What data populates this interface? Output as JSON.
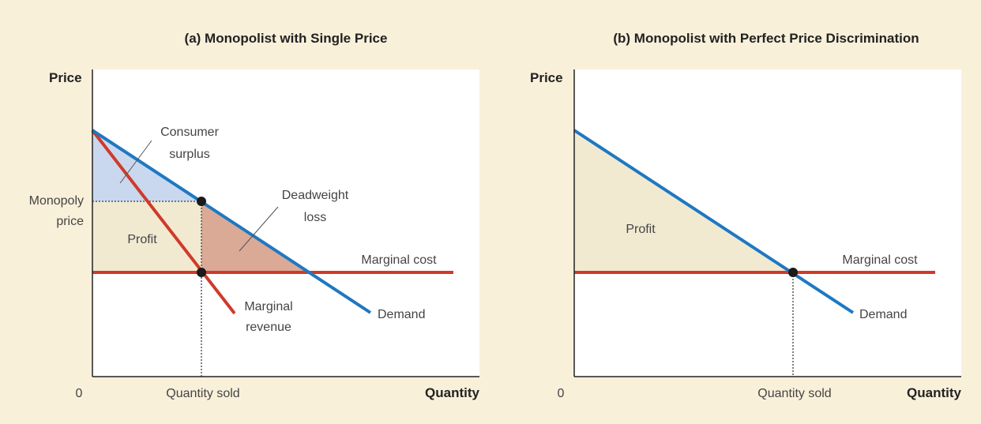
{
  "colors": {
    "background": "#f9f0da",
    "plot": "#ffffff",
    "demand": "#1f78c1",
    "cost": "#d03a2a",
    "consumer_surplus": "#c9d8ef",
    "profit": "#f1ead1",
    "deadweight": "#daaa97",
    "point": "#1a1a1a"
  },
  "panels": [
    {
      "title": "(a) Monopolist with Single Price",
      "y_axis": "Price",
      "x_axis": "Quantity",
      "origin": "0",
      "price_label_line1": "Monopoly",
      "price_label_line2": "price",
      "quantity_label": "Quantity sold",
      "labels": {
        "consumer_surplus_1": "Consumer",
        "consumer_surplus_2": "surplus",
        "deadweight_1": "Deadweight",
        "deadweight_2": "loss",
        "profit": "Profit",
        "marginal_cost": "Marginal cost",
        "marginal_revenue_1": "Marginal",
        "marginal_revenue_2": "revenue",
        "demand": "Demand"
      }
    },
    {
      "title": "(b) Monopolist with Perfect Price Discrimination",
      "y_axis": "Price",
      "x_axis": "Quantity",
      "origin": "0",
      "quantity_label": "Quantity sold",
      "labels": {
        "profit": "Profit",
        "marginal_cost": "Marginal cost",
        "demand": "Demand"
      }
    }
  ]
}
